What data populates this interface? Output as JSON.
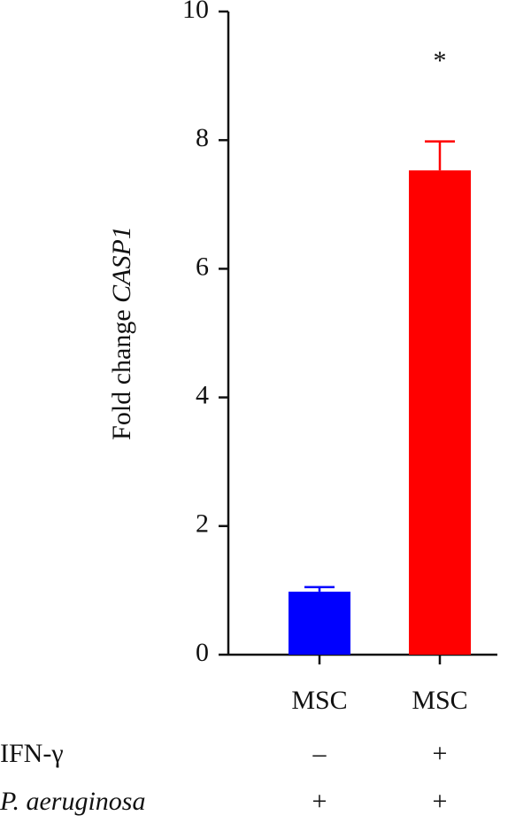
{
  "chart_data": {
    "type": "bar",
    "ylabel": "Fold change",
    "ylabel_gene": "CASP1",
    "categories": [
      "MSC",
      "MSC"
    ],
    "values": [
      0.98,
      7.53
    ],
    "errors": [
      0.07,
      0.45
    ],
    "colors": [
      "#0000ff",
      "#ff0000"
    ],
    "ylim": [
      0,
      10
    ],
    "yticks": [
      0,
      2,
      4,
      6,
      8,
      10
    ],
    "annotations": [
      {
        "text": "*",
        "category": 1,
        "y": 9.2
      }
    ],
    "conditions": [
      {
        "label": "IFN-γ",
        "values": [
          "–",
          "+"
        ]
      },
      {
        "label": "P. aeruginosa",
        "values": [
          "+",
          "+"
        ]
      }
    ]
  }
}
